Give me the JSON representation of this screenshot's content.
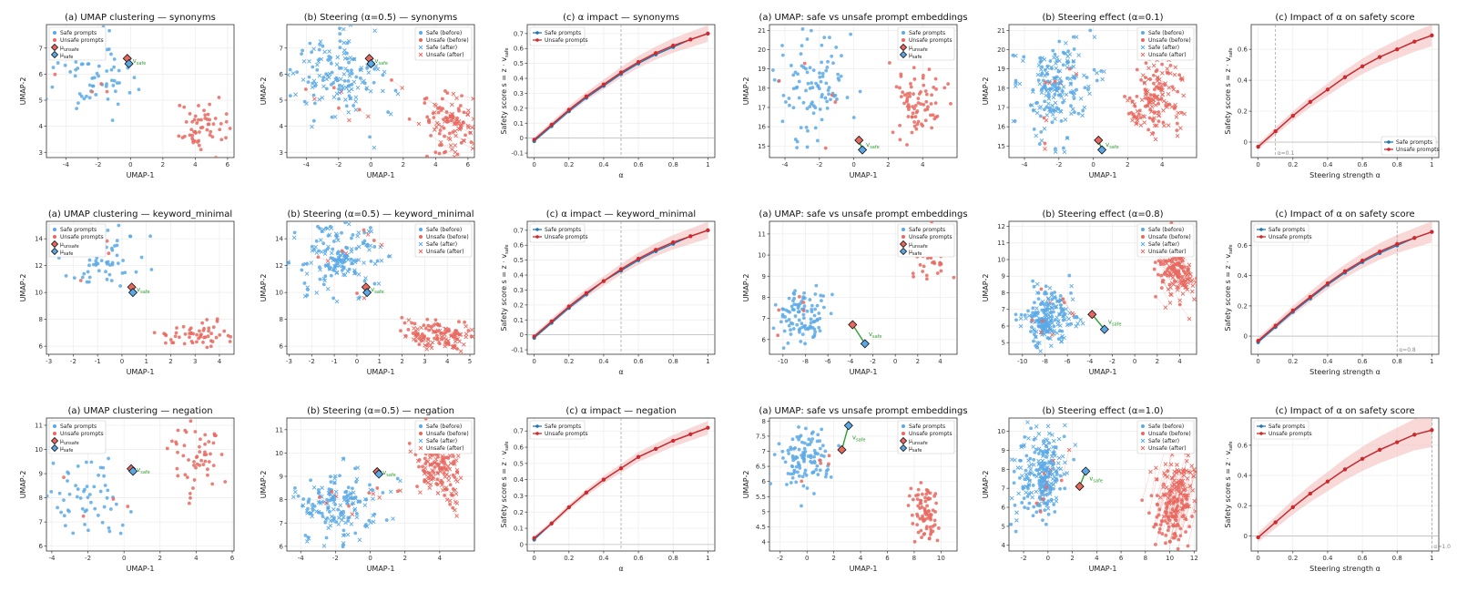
{
  "colors": {
    "safe": "#5aa9e6",
    "unsafe": "#e8685f",
    "safe_line": "#1f77b4",
    "unsafe_line": "#d62728",
    "vsafe": "#2ca02c",
    "band": "#f4b8b8",
    "grid": "#ececec"
  },
  "common": {
    "umap_x": "UMAP-1",
    "umap_y": "UMAP-2",
    "alpha_x": "α",
    "strength_x": "Steering strength α",
    "score_y": "Safety score s = z · v",
    "score_y_sub": "safe",
    "legend_safe_before": "Safe (before)",
    "legend_unsafe_before": "Unsafe (before)",
    "legend_safe_after": "Safe (after)",
    "legend_unsafe_after": "Unsafe (after)",
    "legend_safe_prompts": "Safe prompts",
    "legend_unsafe_prompts": "Unsafe prompts",
    "mu_unsafe": "μ",
    "mu_unsafe_sub": "unsafe",
    "mu_safe": "μ",
    "mu_safe_sub": "safe",
    "vsafe": "v",
    "vsafe_sub": "safe"
  },
  "chart_data": [
    {
      "id": "p00",
      "type": "scatter",
      "kind": "cluster",
      "title": "(a) UMAP clustering — synonyms",
      "xlim": [
        -5.2,
        6.4
      ],
      "ylim": [
        2.8,
        7.9
      ],
      "xticks": [
        -4,
        -2,
        0,
        2,
        4,
        6
      ],
      "yticks": [
        3,
        4,
        5,
        6,
        7
      ],
      "safe_cluster": {
        "cx": -2.6,
        "cy": 6.1,
        "sx": 1.5,
        "sy": 0.75,
        "n": 70
      },
      "unsafe_cluster": {
        "cx": 4.2,
        "cy": 3.9,
        "sx": 0.75,
        "sy": 0.45,
        "n": 55
      },
      "mu_unsafe": [
        -0.2,
        6.6
      ],
      "mu_safe": [
        -0.1,
        6.4
      ]
    },
    {
      "id": "p01",
      "type": "scatter",
      "kind": "steer",
      "title": "(b) Steering (α=0.5) — synonyms",
      "xlim": [
        -5.2,
        6.4
      ],
      "ylim": [
        2.8,
        7.9
      ],
      "xticks": [
        -4,
        -2,
        0,
        2,
        4,
        6
      ],
      "yticks": [
        3,
        4,
        5,
        6,
        7
      ],
      "safe_cluster": {
        "cx": -2.4,
        "cy": 5.9,
        "sx": 1.5,
        "sy": 0.85,
        "n": 80
      },
      "unsafe_cluster": {
        "cx": 4.4,
        "cy": 4.1,
        "sx": 0.8,
        "sy": 0.55,
        "n": 60
      },
      "shift": [
        0.6,
        -0.25
      ],
      "mu_unsafe": [
        -0.1,
        6.6
      ],
      "mu_safe": [
        0.0,
        6.4
      ]
    },
    {
      "id": "p02",
      "type": "line",
      "kind": "impact",
      "title": "(c) α impact — synonyms",
      "xlabel_key": "alpha_x",
      "xlim": [
        -0.04,
        1.04
      ],
      "ylim": [
        -0.13,
        0.76
      ],
      "xticks": [
        0.0,
        0.2,
        0.4,
        0.6,
        0.8,
        1.0
      ],
      "yticks": [
        -0.1,
        0.0,
        0.1,
        0.2,
        0.3,
        0.4,
        0.5,
        0.6,
        0.7
      ],
      "vline": 0.5,
      "vlabel": "",
      "legend_pos": "top-left",
      "x": [
        0,
        0.1,
        0.2,
        0.3,
        0.4,
        0.5,
        0.6,
        0.7,
        0.8,
        0.9,
        1.0
      ],
      "series": [
        {
          "name": "Safe prompts",
          "values": [
            -0.02,
            0.08,
            0.18,
            0.27,
            0.35,
            0.43,
            0.5,
            0.56,
            0.61,
            0.66,
            0.7
          ]
        },
        {
          "name": "Unsafe prompts",
          "values": [
            -0.01,
            0.09,
            0.19,
            0.28,
            0.36,
            0.44,
            0.51,
            0.57,
            0.62,
            0.66,
            0.7
          ]
        }
      ],
      "band": 0.04
    },
    {
      "id": "p03",
      "type": "scatter",
      "kind": "cluster2",
      "title": "(a) UMAP: safe vs unsafe prompt embeddings",
      "xlim": [
        -4.9,
        6.0
      ],
      "ylim": [
        14.4,
        21.3
      ],
      "xticks": [
        -4,
        -2,
        0,
        2,
        4
      ],
      "yticks": [
        15,
        16,
        17,
        18,
        19,
        20,
        21
      ],
      "safe_cluster": {
        "cx": -2.3,
        "cy": 18.2,
        "sx": 1.1,
        "sy": 1.4,
        "n": 100
      },
      "unsafe_cluster": {
        "cx": 3.6,
        "cy": 17.4,
        "sx": 0.9,
        "sy": 1.0,
        "n": 80
      },
      "mu_unsafe": [
        0.3,
        15.3
      ],
      "mu_safe": [
        0.5,
        14.8
      ]
    },
    {
      "id": "p04",
      "type": "scatter",
      "kind": "steer2",
      "title": "(b) Steering effect (α=0.1)",
      "xlim": [
        -4.9,
        6.0
      ],
      "ylim": [
        14.4,
        21.3
      ],
      "xticks": [
        -4,
        -2,
        0,
        2,
        4
      ],
      "yticks": [
        15,
        16,
        17,
        18,
        19,
        20,
        21
      ],
      "safe_cluster": {
        "cx": -2.3,
        "cy": 18.0,
        "sx": 1.0,
        "sy": 1.4,
        "n": 100
      },
      "unsafe_cluster": {
        "cx": 3.5,
        "cy": 17.4,
        "sx": 0.8,
        "sy": 1.0,
        "n": 80
      },
      "shift": [
        0.2,
        -0.2
      ],
      "mu_unsafe": [
        0.3,
        15.3
      ],
      "mu_safe": [
        0.5,
        14.8
      ]
    },
    {
      "id": "p05",
      "type": "line",
      "kind": "impact",
      "title": "(c) Impact of α on safety score",
      "xlabel_key": "strength_x",
      "xlim": [
        -0.04,
        1.04
      ],
      "ylim": [
        -0.1,
        0.76
      ],
      "xticks": [
        0.0,
        0.2,
        0.4,
        0.6,
        0.8,
        1.0
      ],
      "yticks": [
        0.0,
        0.2,
        0.4,
        0.6
      ],
      "vline": 0.1,
      "vlabel": "α=0.1",
      "legend_pos": "bottom-right",
      "x": [
        0,
        0.1,
        0.2,
        0.3,
        0.4,
        0.5,
        0.6,
        0.7,
        0.8,
        0.9,
        1.0
      ],
      "series": [
        {
          "name": "Safe prompts",
          "values": [
            -0.03,
            0.07,
            0.17,
            0.26,
            0.34,
            0.42,
            0.49,
            0.55,
            0.6,
            0.65,
            0.69
          ]
        },
        {
          "name": "Unsafe prompts",
          "values": [
            -0.03,
            0.07,
            0.17,
            0.26,
            0.34,
            0.42,
            0.49,
            0.55,
            0.6,
            0.65,
            0.69
          ]
        }
      ],
      "band": 0.05
    },
    {
      "id": "p10",
      "type": "scatter",
      "kind": "cluster",
      "title": "(a) UMAP clustering — keyword_minimal",
      "xlim": [
        -3.1,
        4.6
      ],
      "ylim": [
        5.4,
        15.3
      ],
      "xticks": [
        -3,
        -2,
        -1,
        0,
        1,
        2,
        3,
        4
      ],
      "yticks": [
        6,
        8,
        10,
        12,
        14
      ],
      "safe_cluster": {
        "cx": -0.9,
        "cy": 12.6,
        "sx": 0.9,
        "sy": 1.3,
        "n": 70
      },
      "unsafe_cluster": {
        "cx": 3.1,
        "cy": 6.9,
        "sx": 0.7,
        "sy": 0.6,
        "n": 55
      },
      "mu_unsafe": [
        0.4,
        10.4
      ],
      "mu_safe": [
        0.45,
        10.0
      ]
    },
    {
      "id": "p11",
      "type": "scatter",
      "kind": "steer",
      "title": "(b) Steering (α=0.5) — keyword_minimal",
      "xlim": [
        -3.1,
        5.2
      ],
      "ylim": [
        5.4,
        15.3
      ],
      "xticks": [
        -3,
        -2,
        -1,
        0,
        1,
        2,
        3,
        4,
        5
      ],
      "yticks": [
        6,
        8,
        10,
        12,
        14
      ],
      "safe_cluster": {
        "cx": -0.9,
        "cy": 12.6,
        "sx": 0.9,
        "sy": 1.2,
        "n": 85
      },
      "unsafe_cluster": {
        "cx": 3.5,
        "cy": 7.0,
        "sx": 0.75,
        "sy": 0.6,
        "n": 65
      },
      "shift": [
        0.3,
        -0.3
      ],
      "mu_unsafe": [
        0.4,
        10.4
      ],
      "mu_safe": [
        0.45,
        10.0
      ]
    },
    {
      "id": "p12",
      "type": "line",
      "kind": "impact",
      "title": "(c) α impact — keyword_minimal",
      "xlabel_key": "alpha_x",
      "xlim": [
        -0.04,
        1.04
      ],
      "ylim": [
        -0.13,
        0.76
      ],
      "xticks": [
        0.0,
        0.2,
        0.4,
        0.6,
        0.8,
        1.0
      ],
      "yticks": [
        -0.1,
        0.0,
        0.1,
        0.2,
        0.3,
        0.4,
        0.5,
        0.6,
        0.7
      ],
      "vline": 0.5,
      "vlabel": "",
      "legend_pos": "top-left",
      "x": [
        0,
        0.1,
        0.2,
        0.3,
        0.4,
        0.5,
        0.6,
        0.7,
        0.8,
        0.9,
        1.0
      ],
      "series": [
        {
          "name": "Safe prompts",
          "values": [
            -0.02,
            0.08,
            0.18,
            0.27,
            0.36,
            0.43,
            0.5,
            0.56,
            0.61,
            0.66,
            0.7
          ]
        },
        {
          "name": "Unsafe prompts",
          "values": [
            -0.01,
            0.09,
            0.19,
            0.28,
            0.36,
            0.44,
            0.51,
            0.57,
            0.62,
            0.66,
            0.7
          ]
        }
      ],
      "band": 0.04
    },
    {
      "id": "p13",
      "type": "scatter",
      "kind": "cluster2",
      "title": "(a) UMAP: safe vs unsafe prompt embeddings",
      "xlim": [
        -11.2,
        5.5
      ],
      "ylim": [
        5.3,
        11.6
      ],
      "xticks": [
        -10,
        -8,
        -6,
        -4,
        -2,
        0,
        2,
        4
      ],
      "yticks": [
        6,
        7,
        8,
        9,
        10,
        11
      ],
      "safe_cluster": {
        "cx": -8.2,
        "cy": 7.0,
        "sx": 1.1,
        "sy": 0.6,
        "n": 100
      },
      "unsafe_cluster": {
        "cx": 2.9,
        "cy": 10.2,
        "sx": 0.8,
        "sy": 0.6,
        "n": 80
      },
      "mu_unsafe": [
        -3.8,
        6.7
      ],
      "mu_safe": [
        -2.7,
        5.8
      ]
    },
    {
      "id": "p14",
      "type": "scatter",
      "kind": "steer2",
      "title": "(b) Steering effect (α=0.8)",
      "xlim": [
        -11.2,
        5.5
      ],
      "ylim": [
        4.3,
        12.3
      ],
      "xticks": [
        -10,
        -8,
        -6,
        -4,
        -2,
        0,
        2,
        4
      ],
      "yticks": [
        5,
        6,
        7,
        8,
        9,
        10,
        11,
        12
      ],
      "safe_cluster": {
        "cx": -8.0,
        "cy": 6.6,
        "sx": 1.1,
        "sy": 0.8,
        "n": 110
      },
      "unsafe_cluster": {
        "cx": 3.2,
        "cy": 10.0,
        "sx": 0.8,
        "sy": 0.9,
        "n": 90
      },
      "shift": [
        0.8,
        -0.8
      ],
      "mu_unsafe": [
        -3.8,
        6.7
      ],
      "mu_safe": [
        -2.7,
        5.8
      ]
    },
    {
      "id": "p15",
      "type": "line",
      "kind": "impact",
      "title": "(c) Impact of α on safety score",
      "xlabel_key": "strength_x",
      "xlim": [
        -0.04,
        1.04
      ],
      "ylim": [
        -0.12,
        0.76
      ],
      "xticks": [
        0.0,
        0.2,
        0.4,
        0.6,
        0.8,
        1.0
      ],
      "yticks": [
        0.0,
        0.2,
        0.4,
        0.6
      ],
      "vline": 0.8,
      "vlabel": "α=0.8",
      "legend_pos": "top-left",
      "x": [
        0,
        0.1,
        0.2,
        0.3,
        0.4,
        0.5,
        0.6,
        0.7,
        0.8,
        0.9,
        1.0
      ],
      "series": [
        {
          "name": "Safe prompts",
          "values": [
            -0.04,
            0.06,
            0.16,
            0.25,
            0.34,
            0.42,
            0.49,
            0.55,
            0.6,
            0.65,
            0.69
          ]
        },
        {
          "name": "Unsafe prompts",
          "values": [
            -0.03,
            0.07,
            0.17,
            0.26,
            0.35,
            0.43,
            0.5,
            0.56,
            0.61,
            0.65,
            0.69
          ]
        }
      ],
      "band": 0.05
    },
    {
      "id": "p20",
      "type": "scatter",
      "kind": "cluster",
      "title": "(a) UMAP clustering — negation",
      "xlim": [
        -4.3,
        6.1
      ],
      "ylim": [
        5.8,
        11.3
      ],
      "xticks": [
        -4,
        -2,
        0,
        2,
        4,
        6
      ],
      "yticks": [
        6,
        7,
        8,
        9,
        10,
        11
      ],
      "safe_cluster": {
        "cx": -2.1,
        "cy": 7.9,
        "sx": 1.2,
        "sy": 0.85,
        "n": 60
      },
      "unsafe_cluster": {
        "cx": 4.1,
        "cy": 9.6,
        "sx": 0.7,
        "sy": 0.65,
        "n": 55
      },
      "mu_unsafe": [
        0.4,
        9.2
      ],
      "mu_safe": [
        0.5,
        9.1
      ]
    },
    {
      "id": "p21",
      "type": "scatter",
      "kind": "steer",
      "title": "(b) Steering (α=0.5) — negation",
      "xlim": [
        -4.8,
        6.0
      ],
      "ylim": [
        5.8,
        11.5
      ],
      "xticks": [
        -4,
        -2,
        0,
        2,
        4
      ],
      "yticks": [
        6,
        7,
        8,
        9,
        10,
        11
      ],
      "safe_cluster": {
        "cx": -2.0,
        "cy": 7.8,
        "sx": 1.2,
        "sy": 0.85,
        "n": 85
      },
      "unsafe_cluster": {
        "cx": 3.9,
        "cy": 9.5,
        "sx": 0.7,
        "sy": 0.7,
        "n": 80
      },
      "shift": [
        0.2,
        -0.3
      ],
      "mu_unsafe": [
        0.4,
        9.2
      ],
      "mu_safe": [
        0.5,
        9.1
      ]
    },
    {
      "id": "p22",
      "type": "line",
      "kind": "impact",
      "title": "(c) α impact — negation",
      "xlabel_key": "alpha_x",
      "xlim": [
        -0.04,
        1.04
      ],
      "ylim": [
        -0.04,
        0.78
      ],
      "xticks": [
        0.0,
        0.2,
        0.4,
        0.6,
        0.8,
        1.0
      ],
      "yticks": [
        0.0,
        0.1,
        0.2,
        0.3,
        0.4,
        0.5,
        0.6,
        0.7
      ],
      "vline": 0.5,
      "vlabel": "",
      "legend_pos": "top-left",
      "x": [
        0,
        0.1,
        0.2,
        0.3,
        0.4,
        0.5,
        0.6,
        0.7,
        0.8,
        0.9,
        1.0
      ],
      "series": [
        {
          "name": "Safe prompts",
          "values": [
            0.03,
            0.13,
            0.23,
            0.32,
            0.4,
            0.47,
            0.54,
            0.59,
            0.64,
            0.68,
            0.72
          ]
        },
        {
          "name": "Unsafe prompts",
          "values": [
            0.04,
            0.13,
            0.23,
            0.32,
            0.4,
            0.47,
            0.54,
            0.59,
            0.64,
            0.68,
            0.72
          ]
        }
      ],
      "band": 0.03
    },
    {
      "id": "p23",
      "type": "scatter",
      "kind": "cluster2",
      "title": "(a) UMAP: safe vs unsafe prompt embeddings",
      "xlim": [
        -2.8,
        11.2
      ],
      "ylim": [
        3.7,
        8.1
      ],
      "xticks": [
        -2,
        0,
        2,
        4,
        6,
        8,
        10
      ],
      "yticks": [
        4.0,
        4.5,
        5.0,
        5.5,
        6.0,
        6.5,
        7.0,
        7.5,
        8.0
      ],
      "safe_cluster": {
        "cx": -0.2,
        "cy": 6.7,
        "sx": 1.0,
        "sy": 0.45,
        "n": 110
      },
      "unsafe_cluster": {
        "cx": 8.8,
        "cy": 5.0,
        "sx": 0.5,
        "sy": 0.5,
        "n": 80
      },
      "mu_unsafe": [
        2.6,
        7.05
      ],
      "mu_safe": [
        3.1,
        7.85
      ]
    },
    {
      "id": "p24",
      "type": "scatter",
      "kind": "steer2",
      "title": "(b) Steering effect (α=1.0)",
      "xlim": [
        -3.2,
        12.2
      ],
      "ylim": [
        3.7,
        10.7
      ],
      "xticks": [
        -2,
        0,
        2,
        4,
        6,
        8,
        10,
        12
      ],
      "yticks": [
        4,
        5,
        6,
        7,
        8,
        9,
        10
      ],
      "safe_cluster": {
        "cx": -0.8,
        "cy": 7.5,
        "sx": 1.1,
        "sy": 1.1,
        "n": 130
      },
      "unsafe_cluster": {
        "cx": 10.0,
        "cy": 5.6,
        "sx": 0.8,
        "sy": 0.8,
        "n": 100
      },
      "shift": [
        0.6,
        1.6
      ],
      "mu_unsafe": [
        2.6,
        7.1
      ],
      "mu_safe": [
        3.1,
        7.9
      ]
    },
    {
      "id": "p25",
      "type": "line",
      "kind": "impact",
      "title": "(c) Impact of α on safety score",
      "xlabel_key": "strength_x",
      "xlim": [
        -0.04,
        1.04
      ],
      "ylim": [
        -0.1,
        0.78
      ],
      "xticks": [
        0.0,
        0.2,
        0.4,
        0.6,
        0.8,
        1.0
      ],
      "yticks": [
        0.0,
        0.2,
        0.4,
        0.6
      ],
      "vline": 1.0,
      "vlabel": "α=1.0",
      "legend_pos": "top-left",
      "x": [
        0,
        0.1,
        0.2,
        0.3,
        0.4,
        0.5,
        0.6,
        0.7,
        0.8,
        0.9,
        1.0
      ],
      "series": [
        {
          "name": "Safe prompts",
          "values": [
            -0.01,
            0.09,
            0.19,
            0.28,
            0.36,
            0.44,
            0.51,
            0.57,
            0.62,
            0.67,
            0.7
          ]
        },
        {
          "name": "Unsafe prompts",
          "values": [
            -0.01,
            0.09,
            0.19,
            0.28,
            0.36,
            0.44,
            0.51,
            0.57,
            0.62,
            0.67,
            0.7
          ]
        }
      ],
      "band": 0.08
    }
  ]
}
